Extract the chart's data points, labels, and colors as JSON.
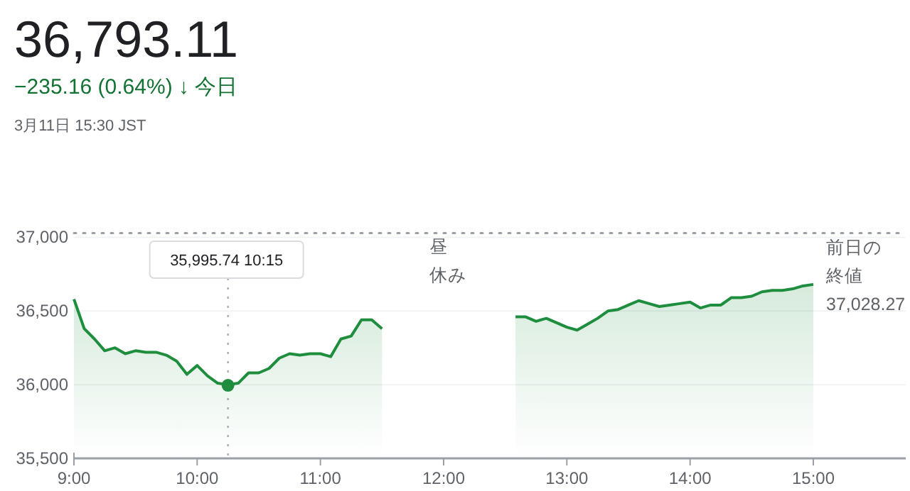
{
  "chart_data": {
    "type": "area",
    "title": "36,793.11",
    "subtitle": "−235.16 (0.64%) ↓ 今日",
    "annotations": [
      "3月11日 15:30 JST",
      "昼休み"
    ],
    "series": [
      {
        "color": "#1e8e3e",
        "x": [
          9,
          9.0833,
          9.1667,
          9.25,
          9.3333,
          9.4167,
          9.5,
          9.5833,
          9.6667,
          9.75,
          9.8333,
          9.9167,
          10,
          10.0833,
          10.1667,
          10.25,
          10.3333,
          10.4167,
          10.5,
          10.5833,
          10.6667,
          10.75,
          10.8333,
          10.9167,
          11,
          11.0833,
          11.1667,
          11.25,
          11.3333,
          11.4167,
          11.5
        ],
        "values": [
          36580,
          36380,
          36310,
          36230,
          36250,
          36210,
          36230,
          36220,
          36220,
          36200,
          36160,
          36070,
          36130,
          36060,
          36010,
          36000,
          36010,
          36080,
          36080,
          36110,
          36180,
          36210,
          36200,
          36210,
          36210,
          36190,
          36310,
          36330,
          36440,
          36440,
          36380
        ]
      },
      {
        "type": "scatter",
        "marker": "circle",
        "color": "#1e8e3e",
        "x": [
          10.25
        ],
        "values": [
          35995.74
        ]
      },
      {
        "color": "#1e8e3e",
        "x": [
          12.5833,
          12.6667,
          12.75,
          12.8333,
          12.9167,
          13,
          13.0833,
          13.1667,
          13.25,
          13.3333,
          13.4167,
          13.5,
          13.5833,
          13.6667,
          13.75,
          13.8333,
          13.9167,
          14,
          14.0833,
          14.1667,
          14.25,
          14.3333,
          14.4167,
          14.5,
          14.5833,
          14.6667,
          14.75,
          14.8333,
          14.9167,
          15
        ],
        "values": [
          36460,
          36460,
          36430,
          36450,
          36420,
          36390,
          36370,
          36410,
          36450,
          36500,
          36510,
          36540,
          36570,
          36550,
          36530,
          36540,
          36550,
          36560,
          36520,
          36540,
          36540,
          36590,
          36590,
          36600,
          36630,
          36640,
          36640,
          36650,
          36670,
          36680
        ]
      }
    ],
    "xlim": [
      9,
      15.75
    ],
    "ylim": [
      35500,
      37050
    ],
    "xticks": [
      {
        "value": 9,
        "label": "9:00"
      },
      {
        "value": 10,
        "label": "10:00"
      },
      {
        "value": 11,
        "label": "11:00"
      },
      {
        "value": 12,
        "label": "12:00"
      },
      {
        "value": 13,
        "label": "13:00"
      },
      {
        "value": 14,
        "label": "14:00"
      },
      {
        "value": 15,
        "label": "15:00"
      }
    ],
    "yticks": [
      {
        "value": 35500,
        "label": "35,500"
      },
      {
        "value": 36000,
        "label": "36,000"
      },
      {
        "value": 36500,
        "label": "36,500"
      },
      {
        "value": 37000,
        "label": "37,000"
      }
    ],
    "grid": "y",
    "ref_lines": [
      {
        "axis": "x",
        "value": 10.25,
        "label": "35,995.74  10:15",
        "line_style": "dotted",
        "color": "#9aa0a6"
      },
      {
        "axis": "y",
        "value": 37028.27,
        "label": "前日の終値37,028.27",
        "line_style": "dotted",
        "color": "#9aa0a6"
      }
    ]
  }
}
